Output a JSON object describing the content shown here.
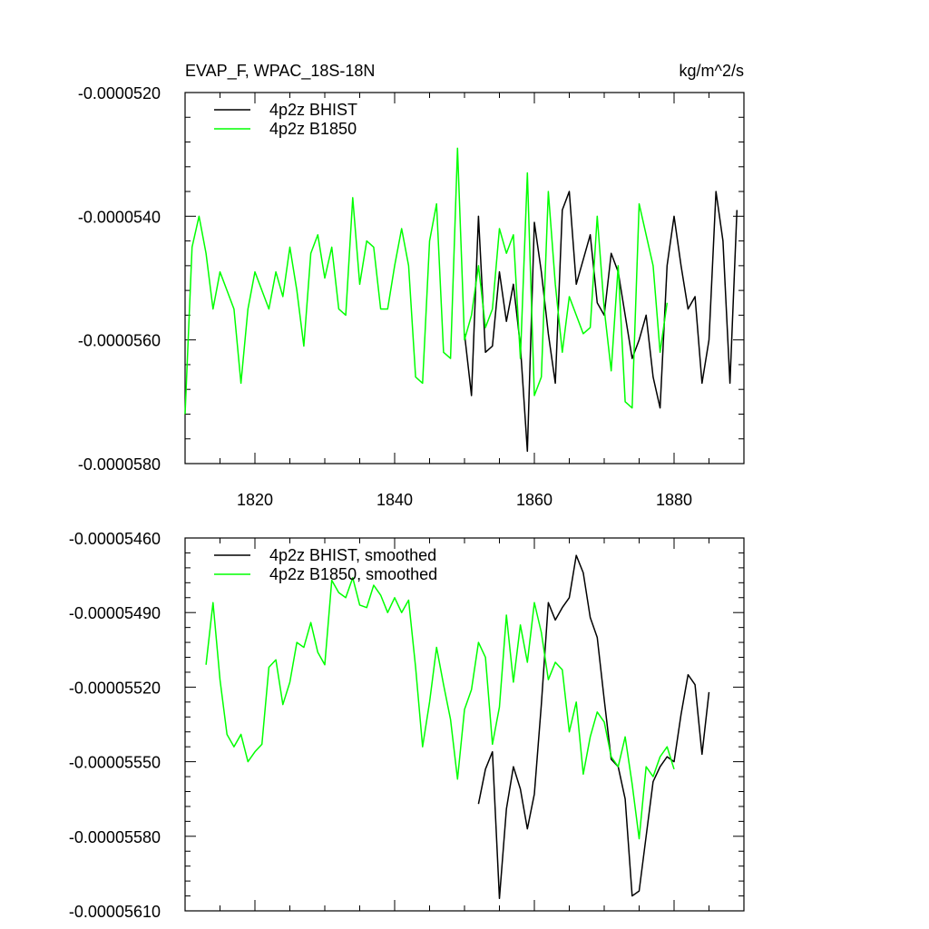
{
  "chart_data": [
    {
      "type": "line",
      "title": "EVAP_F, WPAC_18S-18N",
      "units": "kg/m^2/s",
      "xlim": [
        1810,
        1890
      ],
      "ylim": [
        -5.8e-05,
        -5.2e-05
      ],
      "xticks": [
        1820,
        1840,
        1860,
        1880
      ],
      "xtick_labels": [
        "1820",
        "1840",
        "1860",
        "1880"
      ],
      "yticks": [
        -5.2e-05,
        -5.4e-05,
        -5.6e-05,
        -5.8e-05
      ],
      "ytick_labels": [
        "-0.0000520",
        "-0.0000540",
        "-0.0000560",
        "-0.0000580"
      ],
      "grid": false,
      "legend_position": "top-left",
      "series": [
        {
          "name": "4p2z BHIST",
          "color": "#000000",
          "x_start": 1850,
          "values": [
            -5.59e-05,
            -5.69e-05,
            -5.4e-05,
            -5.62e-05,
            -5.61e-05,
            -5.49e-05,
            -5.57e-05,
            -5.51e-05,
            -5.61e-05,
            -5.78e-05,
            -5.41e-05,
            -5.49e-05,
            -5.59e-05,
            -5.67e-05,
            -5.39e-05,
            -5.36e-05,
            -5.51e-05,
            -5.47e-05,
            -5.43e-05,
            -5.54e-05,
            -5.56e-05,
            -5.46e-05,
            -5.49e-05,
            -5.56e-05,
            -5.63e-05,
            -5.6e-05,
            -5.56e-05,
            -5.66e-05,
            -5.71e-05,
            -5.48e-05,
            -5.4e-05,
            -5.48e-05,
            -5.55e-05,
            -5.53e-05,
            -5.67e-05,
            -5.6e-05,
            -5.36e-05,
            -5.44e-05,
            -5.67e-05,
            -5.39e-05
          ]
        },
        {
          "name": "4p2z B1850",
          "color": "#00ff00",
          "x_start": 1810,
          "values": [
            -5.72e-05,
            -5.45e-05,
            -5.4e-05,
            -5.46e-05,
            -5.55e-05,
            -5.49e-05,
            -5.52e-05,
            -5.55e-05,
            -5.67e-05,
            -5.55e-05,
            -5.49e-05,
            -5.52e-05,
            -5.55e-05,
            -5.49e-05,
            -5.53e-05,
            -5.45e-05,
            -5.52e-05,
            -5.61e-05,
            -5.46e-05,
            -5.43e-05,
            -5.5e-05,
            -5.45e-05,
            -5.55e-05,
            -5.56e-05,
            -5.37e-05,
            -5.51e-05,
            -5.44e-05,
            -5.45e-05,
            -5.55e-05,
            -5.55e-05,
            -5.48e-05,
            -5.42e-05,
            -5.48e-05,
            -5.66e-05,
            -5.67e-05,
            -5.44e-05,
            -5.38e-05,
            -5.62e-05,
            -5.63e-05,
            -5.29e-05,
            -5.6e-05,
            -5.56e-05,
            -5.48e-05,
            -5.58e-05,
            -5.55e-05,
            -5.42e-05,
            -5.46e-05,
            -5.43e-05,
            -5.63e-05,
            -5.33e-05,
            -5.69e-05,
            -5.66e-05,
            -5.36e-05,
            -5.51e-05,
            -5.62e-05,
            -5.53e-05,
            -5.56e-05,
            -5.59e-05,
            -5.58e-05,
            -5.4e-05,
            -5.55e-05,
            -5.65e-05,
            -5.48e-05,
            -5.7e-05,
            -5.71e-05,
            -5.38e-05,
            -5.43e-05,
            -5.48e-05,
            -5.62e-05,
            -5.54e-05
          ]
        }
      ]
    },
    {
      "type": "line",
      "xlim": [
        1810,
        1890
      ],
      "ylim": [
        -5.61e-05,
        -5.46e-05
      ],
      "xticks": [
        1820,
        1840,
        1860,
        1880
      ],
      "yticks": [
        -5.46e-05,
        -5.49e-05,
        -5.52e-05,
        -5.55e-05,
        -5.58e-05,
        -5.61e-05
      ],
      "ytick_labels": [
        "-0.00005460",
        "-0.00005490",
        "-0.00005520",
        "-0.00005550",
        "-0.00005580",
        "-0.00005610"
      ],
      "grid": false,
      "legend_position": "top-left",
      "series": [
        {
          "name": "4p2z BHIST, smoothed",
          "color": "#000000",
          "x_start": 1852,
          "values": [
            -5.567e-05,
            -5.553e-05,
            -5.546e-05,
            -5.605e-05,
            -5.569e-05,
            -5.552e-05,
            -5.561e-05,
            -5.577e-05,
            -5.563e-05,
            -5.527e-05,
            -5.486e-05,
            -5.493e-05,
            -5.488e-05,
            -5.484e-05,
            -5.467e-05,
            -5.474e-05,
            -5.492e-05,
            -5.5e-05,
            -5.525e-05,
            -5.549e-05,
            -5.552e-05,
            -5.565e-05,
            -5.604e-05,
            -5.602e-05,
            -5.58e-05,
            -5.558e-05,
            -5.552e-05,
            -5.548e-05,
            -5.55e-05,
            -5.531e-05,
            -5.515e-05,
            -5.519e-05,
            -5.547e-05,
            -5.522e-05
          ]
        },
        {
          "name": "4p2z B1850, smoothed",
          "color": "#00ff00",
          "x_start": 1813,
          "values": [
            -5.511e-05,
            -5.486e-05,
            -5.517e-05,
            -5.539e-05,
            -5.544e-05,
            -5.539e-05,
            -5.55e-05,
            -5.546e-05,
            -5.543e-05,
            -5.512e-05,
            -5.509e-05,
            -5.527e-05,
            -5.518e-05,
            -5.502e-05,
            -5.504e-05,
            -5.494e-05,
            -5.506e-05,
            -5.511e-05,
            -5.477e-05,
            -5.482e-05,
            -5.484e-05,
            -5.476e-05,
            -5.487e-05,
            -5.488e-05,
            -5.479e-05,
            -5.483e-05,
            -5.49e-05,
            -5.484e-05,
            -5.49e-05,
            -5.485e-05,
            -5.512e-05,
            -5.544e-05,
            -5.526e-05,
            -5.504e-05,
            -5.519e-05,
            -5.533e-05,
            -5.557e-05,
            -5.529e-05,
            -5.521e-05,
            -5.502e-05,
            -5.508e-05,
            -5.543e-05,
            -5.528e-05,
            -5.491e-05,
            -5.518e-05,
            -5.495e-05,
            -5.51e-05,
            -5.486e-05,
            -5.498e-05,
            -5.517e-05,
            -5.51e-05,
            -5.513e-05,
            -5.538e-05,
            -5.526e-05,
            -5.555e-05,
            -5.54e-05,
            -5.53e-05,
            -5.534e-05,
            -5.548e-05,
            -5.552e-05,
            -5.54e-05,
            -5.559e-05,
            -5.581e-05,
            -5.552e-05,
            -5.556e-05,
            -5.548e-05,
            -5.544e-05,
            -5.553e-05
          ]
        }
      ]
    }
  ]
}
